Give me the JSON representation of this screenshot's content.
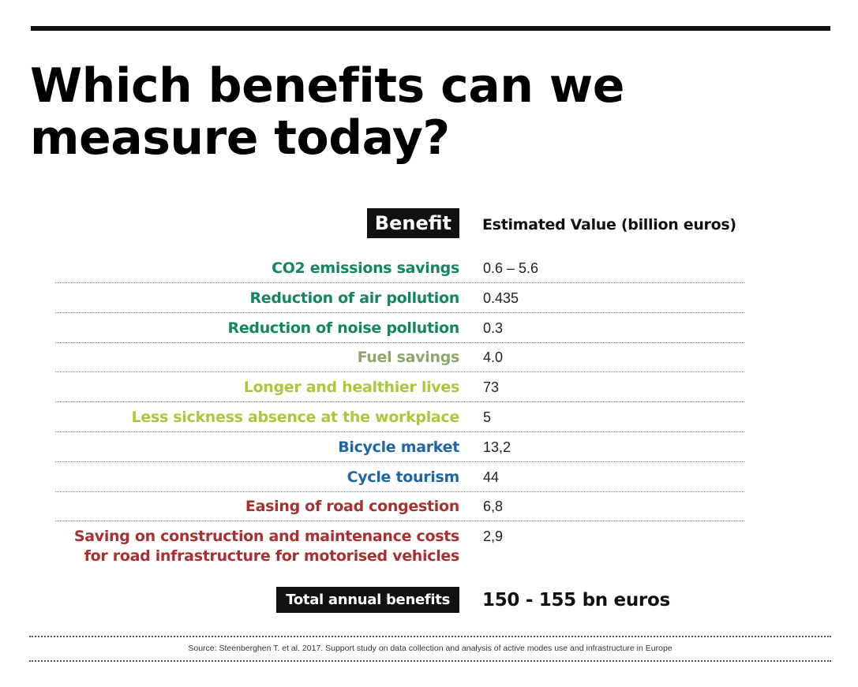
{
  "title": "Which benefits can we measure today?",
  "colors": {
    "green": "#14865f",
    "olive": "#8aa86a",
    "lime": "#a8c93b",
    "blue": "#1f66a6",
    "red": "#a8302f"
  },
  "chart_data": {
    "type": "table",
    "title": "Which benefits can we measure today?",
    "columns": [
      "Benefit",
      "Estimated Value (billion euros)"
    ],
    "rows": [
      {
        "benefit": "CO2 emissions savings",
        "value": "0.6 – 5.6",
        "color": "#14865f"
      },
      {
        "benefit": "Reduction of air pollution",
        "value": "0.435",
        "color": "#14865f"
      },
      {
        "benefit": "Reduction of noise pollution",
        "value": "0.3",
        "color": "#14865f"
      },
      {
        "benefit": "Fuel savings",
        "value": "4.0",
        "color": "#8aa86a"
      },
      {
        "benefit": "Longer and healthier lives",
        "value": "73",
        "color": "#a8c93b"
      },
      {
        "benefit": "Less sickness absence at the workplace",
        "value": "5",
        "color": "#a8c93b"
      },
      {
        "benefit": "Bicycle market",
        "value": "13,2",
        "color": "#1f66a6"
      },
      {
        "benefit": "Cycle tourism",
        "value": "44",
        "color": "#1f66a6"
      },
      {
        "benefit": "Easing of road congestion",
        "value": "6,8",
        "color": "#a8302f"
      },
      {
        "benefit": "Saving on construction and maintenance costs for road infrastructure for motorised vehicles",
        "value": "2,9",
        "color": "#a8302f"
      }
    ],
    "total": {
      "label": "Total annual benefits",
      "value": "150 - 155 bn euros"
    }
  },
  "source": "Source: Steenberghen T. et al. 2017. Support study on data collection and analysis of active modes use and infrastructure in Europe"
}
